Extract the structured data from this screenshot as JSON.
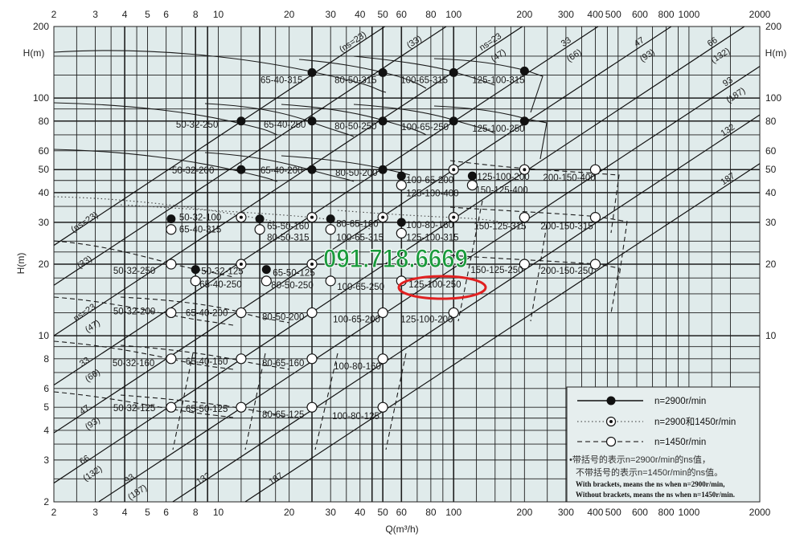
{
  "chart_data": {
    "type": "scatter",
    "title": "",
    "xlabel": "Q(m³/h)",
    "ylabel": "H(m)",
    "ylabel_top": "H(m)",
    "x_scale": "log",
    "y_scale": "log",
    "xlim": [
      2,
      2000
    ],
    "ylim": [
      2,
      200
    ],
    "grid": true,
    "colors": {
      "background": "#e0ebeb",
      "grid": "#1e1e1e",
      "watermark": "#1a9a3c",
      "highlight": "#e02020"
    },
    "x_ticks": [
      "2",
      "3",
      "4",
      "5",
      "6",
      "8",
      "10",
      "20",
      "30",
      "40",
      "50",
      "60",
      "80",
      "100",
      "200",
      "300",
      "400",
      "500",
      "600",
      "800",
      "1000",
      "2000"
    ],
    "x_tick_values": [
      2,
      3,
      4,
      5,
      6,
      8,
      10,
      20,
      30,
      40,
      50,
      60,
      80,
      100,
      200,
      300,
      400,
      500,
      600,
      800,
      1000,
      2000
    ],
    "y_ticks_left": [
      "200",
      "100",
      "80",
      "60",
      "50",
      "40",
      "30",
      "20",
      "10",
      "8",
      "6",
      "5",
      "4",
      "3",
      "2"
    ],
    "y_ticks_left_values": [
      200,
      100,
      80,
      60,
      50,
      40,
      30,
      20,
      10,
      8,
      6,
      5,
      4,
      3,
      2
    ],
    "y_ticks_right": [
      "200",
      "100",
      "80",
      "60",
      "50",
      "40",
      "30",
      "20",
      "10"
    ],
    "y_ticks_right_values": [
      200,
      100,
      80,
      60,
      50,
      40,
      30,
      20,
      10
    ],
    "ns_lines": [
      {
        "labels": [
          "(ns=23)"
        ],
        "from": [
          2,
          24
        ],
        "to": [
          51,
          200
        ]
      },
      {
        "labels": [
          "(33)"
        ],
        "from": [
          2,
          16.3
        ],
        "to": [
          93,
          200
        ]
      },
      {
        "labels": [
          "ns=23",
          "(47)"
        ],
        "from": [
          2,
          10
        ],
        "to": [
          196,
          200
        ]
      },
      {
        "labels": [
          "33",
          "(66)"
        ],
        "from": [
          2,
          6.2
        ],
        "to": [
          411,
          200
        ]
      },
      {
        "labels": [
          "47",
          "(93)"
        ],
        "from": [
          2,
          3.9
        ],
        "to": [
          841,
          200
        ]
      },
      {
        "labels": [
          "66",
          "(132)"
        ],
        "from": [
          2,
          2.4
        ],
        "to": [
          1720,
          200
        ]
      },
      {
        "labels": [
          "93",
          "(187)"
        ],
        "from": [
          3.1,
          2
        ],
        "to": [
          2000,
          136
        ]
      },
      {
        "labels": [
          "132"
        ],
        "from": [
          6.4,
          2
        ],
        "to": [
          2000,
          85
        ]
      },
      {
        "labels": [
          "187"
        ],
        "from": [
          13,
          2
        ],
        "to": [
          2000,
          53
        ]
      }
    ],
    "points": [
      {
        "label": "65-40-315",
        "Q": 25,
        "H": 128,
        "speed": "2900"
      },
      {
        "label": "80-50-315",
        "Q": 50,
        "H": 128,
        "speed": "2900"
      },
      {
        "label": "100-65-315",
        "Q": 100,
        "H": 128,
        "speed": "2900"
      },
      {
        "label": "125-100-315",
        "Q": 200,
        "H": 130,
        "speed": "2900"
      },
      {
        "label": "50-32-250",
        "Q": 12.5,
        "H": 80,
        "speed": "2900"
      },
      {
        "label": "65-40-250",
        "Q": 25,
        "H": 80,
        "speed": "2900"
      },
      {
        "label": "80-50-250",
        "Q": 50,
        "H": 80,
        "speed": "2900"
      },
      {
        "label": "100-65-250",
        "Q": 100,
        "H": 80,
        "speed": "2900"
      },
      {
        "label": "125-100-250",
        "Q": 200,
        "H": 80,
        "speed": "2900"
      },
      {
        "label": "50-32-200",
        "Q": 12.5,
        "H": 50,
        "speed": "2900"
      },
      {
        "label": "65-40-200",
        "Q": 25,
        "H": 50,
        "speed": "2900"
      },
      {
        "label": "80-50-200",
        "Q": 50,
        "H": 50,
        "speed": "2900"
      },
      {
        "label": "100-65-200",
        "Q": 60,
        "H": 47,
        "speed": "2900"
      },
      {
        "label": "125-100-200",
        "Q": 120,
        "H": 47,
        "speed": "2900"
      },
      {
        "label": "50-32-100",
        "Q": 6.3,
        "H": 31,
        "speed": "2900"
      },
      {
        "label": "65-50-160",
        "Q": 15,
        "H": 31,
        "speed": "2900"
      },
      {
        "label": "80-65-160",
        "Q": 30,
        "H": 31,
        "speed": "2900"
      },
      {
        "label": "100-80-160",
        "Q": 60,
        "H": 30,
        "speed": "2900"
      },
      {
        "label": "50-32-125",
        "Q": 8,
        "H": 19,
        "speed": "2900"
      },
      {
        "label": "65-50-125",
        "Q": 16,
        "H": 19,
        "speed": "2900"
      },
      {
        "label": "65-40-315",
        "Q": 6.3,
        "H": 28,
        "speed": "1450"
      },
      {
        "label": "80-50-315",
        "Q": 15,
        "H": 28,
        "speed": "1450"
      },
      {
        "label": "100-65-315",
        "Q": 30,
        "H": 28,
        "speed": "1450"
      },
      {
        "label": "125-100-315",
        "Q": 60,
        "H": 27,
        "speed": "1450"
      },
      {
        "label": "125-100-400",
        "Q": 60,
        "H": 43,
        "speed": "1450"
      },
      {
        "label": "150-125-400",
        "Q": 120,
        "H": 43,
        "speed": "1450"
      },
      {
        "label": "200-150-400",
        "Q": 400,
        "H": 50,
        "speed": "1450"
      },
      {
        "label": "150-125-315",
        "Q": 200,
        "H": 31.5,
        "speed": "1450"
      },
      {
        "label": "200-150-315",
        "Q": 400,
        "H": 31.5,
        "speed": "1450"
      },
      {
        "label": "50-32-250",
        "Q": 6.3,
        "H": 20,
        "speed": "1450"
      },
      {
        "label": "65-40-250",
        "Q": 8,
        "H": 17,
        "speed": "1450"
      },
      {
        "label": "80-50-250",
        "Q": 16,
        "H": 17,
        "speed": "1450"
      },
      {
        "label": "100-65-250",
        "Q": 30,
        "H": 17,
        "speed": "1450"
      },
      {
        "label": "125-100-250",
        "Q": 60,
        "H": 17,
        "speed": "1450"
      },
      {
        "label": "150-125-250",
        "Q": 200,
        "H": 20,
        "speed": "1450"
      },
      {
        "label": "200-150-250",
        "Q": 400,
        "H": 20,
        "speed": "1450"
      },
      {
        "label": "50-32-200",
        "Q": 6.3,
        "H": 12.5,
        "speed": "1450"
      },
      {
        "label": "65-40-200",
        "Q": 12.5,
        "H": 12.5,
        "speed": "1450"
      },
      {
        "label": "80-50-200",
        "Q": 25,
        "H": 12.5,
        "speed": "1450"
      },
      {
        "label": "100-65-200",
        "Q": 50,
        "H": 12.5,
        "speed": "1450"
      },
      {
        "label": "125-100-200",
        "Q": 100,
        "H": 12.5,
        "speed": "1450"
      },
      {
        "label": "50-32-160",
        "Q": 6.3,
        "H": 8,
        "speed": "1450"
      },
      {
        "label": "65-40-160",
        "Q": 12.5,
        "H": 8,
        "speed": "1450"
      },
      {
        "label": "80-65-160",
        "Q": 25,
        "H": 8,
        "speed": "1450"
      },
      {
        "label": "100-80-160",
        "Q": 50,
        "H": 8,
        "speed": "1450"
      },
      {
        "label": "50-32-125",
        "Q": 6.3,
        "H": 5,
        "speed": "1450"
      },
      {
        "label": "65-50-125",
        "Q": 12.5,
        "H": 5,
        "speed": "1450"
      },
      {
        "label": "80-65-125",
        "Q": 25,
        "H": 5,
        "speed": "1450"
      },
      {
        "label": "100-80-125",
        "Q": 50,
        "H": 5,
        "speed": "1450"
      },
      {
        "label": "",
        "Q": 12.5,
        "H": 31.5,
        "speed": "2900+1450"
      },
      {
        "label": "",
        "Q": 25,
        "H": 31.5,
        "speed": "2900+1450"
      },
      {
        "label": "",
        "Q": 50,
        "H": 31.5,
        "speed": "2900+1450"
      },
      {
        "label": "",
        "Q": 100,
        "H": 31.5,
        "speed": "2900+1450"
      },
      {
        "label": "",
        "Q": 100,
        "H": 50,
        "speed": "2900+1450"
      },
      {
        "label": "",
        "Q": 200,
        "H": 50,
        "speed": "2900+1450"
      },
      {
        "label": "",
        "Q": 12.5,
        "H": 20,
        "speed": "2900+1450"
      },
      {
        "label": "",
        "Q": 25,
        "H": 20,
        "speed": "2900+1450"
      }
    ],
    "highlighted": "125-100-250",
    "legend": {
      "placement": "bottom-right",
      "items": [
        {
          "marker": "filled-circle",
          "line": "solid",
          "text": "n=2900r/min"
        },
        {
          "marker": "dotted-circle",
          "line": "dash-dot",
          "text": "n=2900和1450r/min"
        },
        {
          "marker": "open-circle",
          "line": "dashed",
          "text": "n=1450r/min"
        }
      ],
      "note_cn_1": "•带括号的表示n=2900r/min的ns值，",
      "note_cn_2": "不带括号的表示n=1450r/min的ns值。",
      "note_en_1": "With brackets, means the ns when n=2900r/min,",
      "note_en_2": "Without brackets, means the ns when n=1450r/min."
    }
  },
  "watermark": "091.718.6669"
}
